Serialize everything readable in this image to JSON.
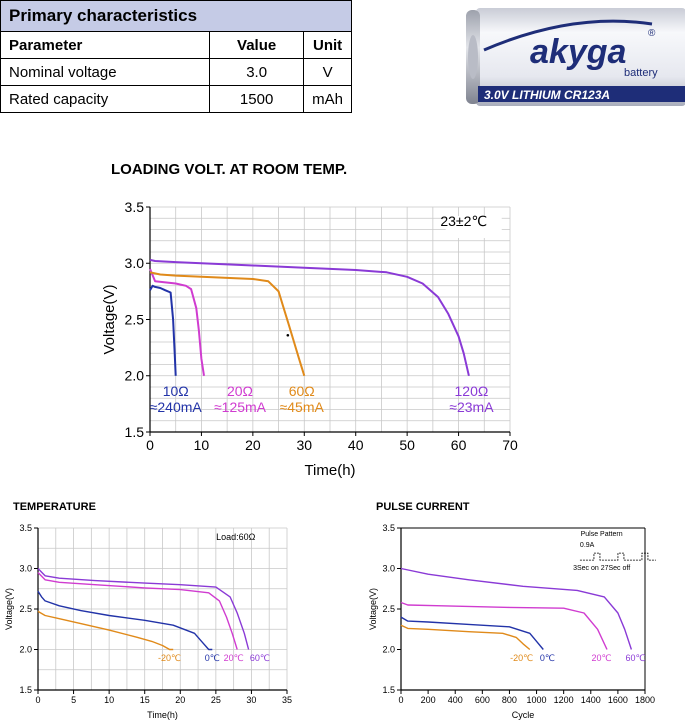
{
  "table": {
    "title": "Primary characteristics",
    "headers": [
      "Parameter",
      "Value",
      "Unit"
    ],
    "rows": [
      [
        "Nominal voltage",
        "3.0",
        "V"
      ],
      [
        "Rated capacity",
        "1500",
        "mAh"
      ]
    ]
  },
  "product": {
    "brand": "akyga",
    "brand_sub": "battery",
    "registered": "®",
    "label": "3.0V  LITHIUM  CR123A",
    "label_color": "#1e2d78",
    "body_color": "#e9ebf2"
  },
  "chart_data": [
    {
      "id": "loading",
      "type": "line",
      "title": "LOADING VOLT. AT ROOM TEMP.",
      "xlabel": "Time(h)",
      "ylabel": "Voltage(V)",
      "xlim": [
        0,
        70
      ],
      "ylim": [
        1.5,
        3.5
      ],
      "xticks": [
        0,
        10,
        20,
        30,
        40,
        50,
        60,
        70
      ],
      "yticks": [
        1.5,
        2.0,
        2.5,
        3.0,
        3.5
      ],
      "yticklabels": [
        "1.5",
        "2.0",
        "2.5",
        "3.0",
        "3.5"
      ],
      "grid": true,
      "annotation": "23±2℃",
      "series": [
        {
          "name": "10Ω",
          "sub": "≈240mA",
          "color": "#2233a8",
          "x": [
            0,
            0.5,
            1,
            2,
            3,
            4,
            4.5,
            4.8,
            5
          ],
          "y": [
            2.76,
            2.8,
            2.79,
            2.78,
            2.76,
            2.74,
            2.5,
            2.2,
            2.0
          ]
        },
        {
          "name": "20Ω",
          "sub": "≈125mA",
          "color": "#d03cd0",
          "x": [
            0,
            1,
            3,
            5,
            7,
            8,
            9,
            9.5,
            10,
            10.5
          ],
          "y": [
            2.95,
            2.84,
            2.83,
            2.82,
            2.8,
            2.77,
            2.6,
            2.4,
            2.15,
            2.0
          ]
        },
        {
          "name": "60Ω",
          "sub": "≈45mA",
          "color": "#e08a1a",
          "x": [
            0,
            2,
            5,
            10,
            15,
            20,
            23,
            25,
            26,
            27,
            28,
            29,
            30
          ],
          "y": [
            2.92,
            2.9,
            2.89,
            2.88,
            2.87,
            2.86,
            2.84,
            2.75,
            2.6,
            2.45,
            2.3,
            2.15,
            2.0
          ]
        },
        {
          "name": "120Ω",
          "sub": "≈23mA",
          "color": "#8a3ad6",
          "x": [
            0,
            1,
            5,
            10,
            20,
            30,
            40,
            46,
            50,
            53,
            56,
            58,
            60,
            61,
            62
          ],
          "y": [
            3.03,
            3.02,
            3.01,
            3.0,
            2.98,
            2.96,
            2.94,
            2.92,
            2.88,
            2.82,
            2.7,
            2.55,
            2.35,
            2.2,
            2.0
          ]
        }
      ]
    },
    {
      "id": "temperature",
      "type": "line",
      "title": "TEMPERATURE",
      "xlabel": "Time(h)",
      "ylabel": "Voltage(V)",
      "xlim": [
        0,
        35
      ],
      "ylim": [
        1.5,
        3.5
      ],
      "xticks": [
        0,
        5,
        10,
        15,
        20,
        25,
        30,
        35
      ],
      "yticks": [
        1.5,
        2.0,
        2.5,
        3.0,
        3.5
      ],
      "yticklabels": [
        "1.5",
        "2.0",
        "2.5",
        "3.0",
        "3.5"
      ],
      "grid": true,
      "annotation": "Load:60Ω",
      "series": [
        {
          "name": "-20℃",
          "color": "#e08a1a",
          "x": [
            0,
            1,
            3,
            6,
            10,
            14,
            16,
            17.5,
            18.5,
            19
          ],
          "y": [
            2.47,
            2.42,
            2.38,
            2.32,
            2.24,
            2.15,
            2.1,
            2.05,
            2.0,
            2.0
          ]
        },
        {
          "name": "0℃",
          "color": "#2233a8",
          "x": [
            0,
            0.5,
            1,
            3,
            6,
            10,
            15,
            19,
            22,
            23,
            24,
            24.5
          ],
          "y": [
            2.72,
            2.65,
            2.6,
            2.54,
            2.48,
            2.42,
            2.36,
            2.3,
            2.2,
            2.1,
            2.0,
            2.0
          ]
        },
        {
          "name": "20℃",
          "color": "#d03cd0",
          "x": [
            0,
            1,
            3,
            8,
            15,
            20,
            24,
            25.5,
            26.5,
            27.3,
            28
          ],
          "y": [
            2.95,
            2.86,
            2.83,
            2.8,
            2.76,
            2.74,
            2.7,
            2.6,
            2.4,
            2.2,
            2.0
          ]
        },
        {
          "name": "60℃",
          "color": "#8a3ad6",
          "x": [
            0,
            1,
            3,
            8,
            15,
            20,
            25,
            27,
            28,
            29,
            29.6
          ],
          "y": [
            3.0,
            2.91,
            2.88,
            2.85,
            2.82,
            2.8,
            2.77,
            2.65,
            2.45,
            2.2,
            2.0
          ]
        }
      ]
    },
    {
      "id": "pulse",
      "type": "line",
      "title": "PULSE CURRENT",
      "xlabel": "Cycle",
      "ylabel": "Voltage(V)",
      "xlim": [
        0,
        1800
      ],
      "ylim": [
        1.5,
        3.5
      ],
      "xticks": [
        0,
        200,
        400,
        600,
        800,
        1000,
        1200,
        1400,
        1600,
        1800
      ],
      "yticks": [
        1.5,
        2.0,
        2.5,
        3.0,
        3.5
      ],
      "yticklabels": [
        "1.5",
        "2.0",
        "2.5",
        "3.0",
        "3.5"
      ],
      "grid": false,
      "annotation_lines": [
        "Pulse Pattern",
        "0.9A",
        "3Sec on  27Sec off"
      ],
      "series": [
        {
          "name": "-20℃",
          "color": "#e08a1a",
          "x": [
            0,
            50,
            200,
            500,
            750,
            850,
            900,
            950
          ],
          "y": [
            2.3,
            2.26,
            2.25,
            2.22,
            2.2,
            2.15,
            2.07,
            2.0
          ]
        },
        {
          "name": "0℃",
          "color": "#2233a8",
          "x": [
            0,
            50,
            200,
            500,
            800,
            950,
            1000,
            1050
          ],
          "y": [
            2.4,
            2.35,
            2.34,
            2.31,
            2.28,
            2.2,
            2.1,
            2.0
          ]
        },
        {
          "name": "20℃",
          "color": "#d03cd0",
          "x": [
            0,
            50,
            300,
            800,
            1200,
            1350,
            1450,
            1520
          ],
          "y": [
            2.58,
            2.55,
            2.54,
            2.52,
            2.51,
            2.45,
            2.25,
            2.0
          ]
        },
        {
          "name": "60℃",
          "color": "#8a3ad6",
          "x": [
            0,
            200,
            500,
            900,
            1300,
            1500,
            1600,
            1650,
            1700
          ],
          "y": [
            3.0,
            2.93,
            2.86,
            2.78,
            2.73,
            2.65,
            2.45,
            2.25,
            2.0
          ]
        }
      ]
    }
  ]
}
